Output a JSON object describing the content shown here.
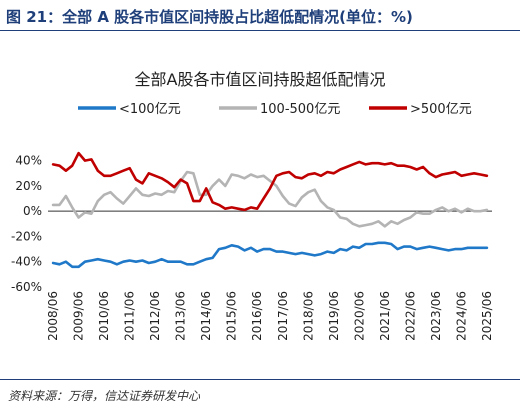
{
  "header": {
    "title": "图 21：全部 A 股各市值区间持股占比超低配情况(单位：%)"
  },
  "footer": {
    "source": "资料来源：万得，信达证券研发中心"
  },
  "chart_data": {
    "type": "line",
    "title": "全部A股各市值区间持股超低配情况",
    "ylim": [
      -60,
      50
    ],
    "yticks": [
      -60,
      -40,
      -20,
      0,
      20,
      40
    ],
    "ytick_labels": [
      "-60%",
      "-40%",
      "-20%",
      "0%",
      "20%",
      "40%"
    ],
    "xlim": [
      2008.3,
      2025.7
    ],
    "xticks": [
      2008.5,
      2009.5,
      2010.5,
      2011.5,
      2012.5,
      2013.5,
      2014.5,
      2015.5,
      2016.5,
      2017.5,
      2018.5,
      2019.5,
      2020.5,
      2021.5,
      2022.5,
      2023.5,
      2024.5,
      2025.5
    ],
    "xtick_labels": [
      "2008/06",
      "2009/06",
      "2010/06",
      "2011/06",
      "2012/06",
      "2013/06",
      "2014/06",
      "2015/06",
      "2016/06",
      "2017/06",
      "2018/06",
      "2019/06",
      "2020/06",
      "2021/06",
      "2022/06",
      "2023/06",
      "2024/06",
      "2025/06"
    ],
    "legend_position": "top",
    "grid": false,
    "series": [
      {
        "name": "<100亿元",
        "color": "#1f78c8",
        "x": [
          2008.5,
          2008.75,
          2009.0,
          2009.25,
          2009.5,
          2009.75,
          2010.0,
          2010.25,
          2010.5,
          2010.75,
          2011.0,
          2011.25,
          2011.5,
          2011.75,
          2012.0,
          2012.25,
          2012.5,
          2012.75,
          2013.0,
          2013.25,
          2013.5,
          2013.75,
          2014.0,
          2014.25,
          2014.5,
          2014.75,
          2015.0,
          2015.25,
          2015.5,
          2015.75,
          2016.0,
          2016.25,
          2016.5,
          2016.75,
          2017.0,
          2017.25,
          2017.5,
          2017.75,
          2018.0,
          2018.25,
          2018.5,
          2018.75,
          2019.0,
          2019.25,
          2019.5,
          2019.75,
          2020.0,
          2020.25,
          2020.5,
          2020.75,
          2021.0,
          2021.25,
          2021.5,
          2021.75,
          2022.0,
          2022.25,
          2022.5,
          2022.75,
          2023.0,
          2023.25,
          2023.5,
          2023.75,
          2024.0,
          2024.25,
          2024.5,
          2024.75,
          2025.0,
          2025.25,
          2025.5
        ],
        "y": [
          -41,
          -42,
          -40,
          -44,
          -44,
          -40,
          -39,
          -38,
          -39,
          -40,
          -42,
          -40,
          -39,
          -40,
          -39,
          -41,
          -40,
          -38,
          -40,
          -40,
          -40,
          -42,
          -42,
          -40,
          -38,
          -37,
          -30,
          -29,
          -27,
          -28,
          -31,
          -29,
          -32,
          -30,
          -30,
          -32,
          -32,
          -33,
          -34,
          -33,
          -34,
          -35,
          -34,
          -32,
          -33,
          -30,
          -31,
          -28,
          -29,
          -26,
          -26,
          -25,
          -25,
          -26,
          -30,
          -28,
          -28,
          -30,
          -29,
          -28,
          -29,
          -30,
          -31,
          -30,
          -30,
          -29,
          -29,
          -29,
          -29
        ]
      },
      {
        "name": "100-500亿元",
        "color": "#b4b4b4",
        "x": [
          2008.5,
          2008.75,
          2009.0,
          2009.25,
          2009.5,
          2009.75,
          2010.0,
          2010.25,
          2010.5,
          2010.75,
          2011.0,
          2011.25,
          2011.5,
          2011.75,
          2012.0,
          2012.25,
          2012.5,
          2012.75,
          2013.0,
          2013.25,
          2013.5,
          2013.75,
          2014.0,
          2014.25,
          2014.5,
          2014.75,
          2015.0,
          2015.25,
          2015.5,
          2015.75,
          2016.0,
          2016.25,
          2016.5,
          2016.75,
          2017.0,
          2017.25,
          2017.5,
          2017.75,
          2018.0,
          2018.25,
          2018.5,
          2018.75,
          2019.0,
          2019.25,
          2019.5,
          2019.75,
          2020.0,
          2020.25,
          2020.5,
          2020.75,
          2021.0,
          2021.25,
          2021.5,
          2021.75,
          2022.0,
          2022.25,
          2022.5,
          2022.75,
          2023.0,
          2023.25,
          2023.5,
          2023.75,
          2024.0,
          2024.25,
          2024.5,
          2024.75,
          2025.0,
          2025.25,
          2025.5
        ],
        "y": [
          5,
          5,
          12,
          3,
          -5,
          -1,
          -2,
          8,
          13,
          15,
          10,
          6,
          12,
          18,
          13,
          12,
          14,
          13,
          16,
          15,
          24,
          31,
          30,
          13,
          13,
          20,
          25,
          20,
          29,
          28,
          26,
          29,
          27,
          28,
          24,
          20,
          12,
          6,
          4,
          11,
          15,
          17,
          8,
          3,
          1,
          -5,
          -6,
          -10,
          -12,
          -11,
          -10,
          -8,
          -12,
          -8,
          -10,
          -7,
          -5,
          -1,
          -2,
          -2,
          1,
          3,
          0,
          2,
          -1,
          2,
          0,
          0,
          1
        ]
      },
      {
        "name": ">500亿元",
        "color": "#c00000",
        "x": [
          2008.5,
          2008.75,
          2009.0,
          2009.25,
          2009.5,
          2009.75,
          2010.0,
          2010.25,
          2010.5,
          2010.75,
          2011.0,
          2011.25,
          2011.5,
          2011.75,
          2012.0,
          2012.25,
          2012.5,
          2012.75,
          2013.0,
          2013.25,
          2013.5,
          2013.75,
          2014.0,
          2014.25,
          2014.5,
          2014.75,
          2015.0,
          2015.25,
          2015.5,
          2015.75,
          2016.0,
          2016.25,
          2016.5,
          2016.75,
          2017.0,
          2017.25,
          2017.5,
          2017.75,
          2018.0,
          2018.25,
          2018.5,
          2018.75,
          2019.0,
          2019.25,
          2019.5,
          2019.75,
          2020.0,
          2020.25,
          2020.5,
          2020.75,
          2021.0,
          2021.25,
          2021.5,
          2021.75,
          2022.0,
          2022.25,
          2022.5,
          2022.75,
          2023.0,
          2023.25,
          2023.5,
          2023.75,
          2024.0,
          2024.25,
          2024.5,
          2024.75,
          2025.0,
          2025.25,
          2025.5
        ],
        "y": [
          37,
          36,
          32,
          36,
          46,
          40,
          41,
          32,
          28,
          28,
          30,
          32,
          34,
          25,
          22,
          30,
          28,
          26,
          23,
          19,
          25,
          22,
          8,
          8,
          18,
          7,
          5,
          2,
          3,
          2,
          1,
          3,
          2,
          10,
          18,
          28,
          30,
          31,
          27,
          26,
          29,
          30,
          28,
          31,
          30,
          33,
          35,
          37,
          39,
          37,
          38,
          38,
          37,
          38,
          36,
          36,
          35,
          33,
          35,
          30,
          27,
          29,
          30,
          31,
          28,
          29,
          30,
          29,
          28
        ]
      }
    ]
  }
}
